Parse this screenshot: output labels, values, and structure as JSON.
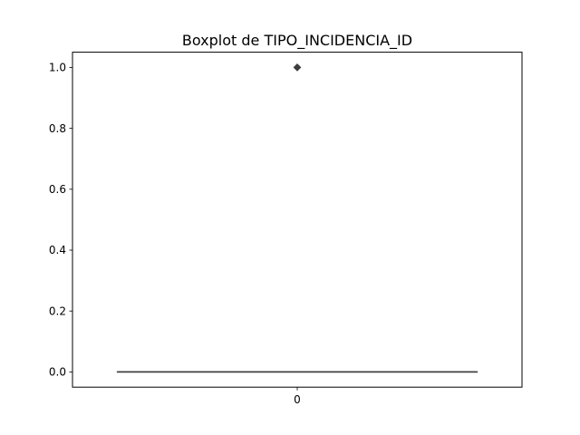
{
  "chart_data": {
    "type": "boxplot",
    "title": "Boxplot de TIPO_INCIDENCIA_ID",
    "xlabel": "",
    "ylabel": "",
    "categories": [
      "0"
    ],
    "ylim": [
      -0.05,
      1.05
    ],
    "yticks": [
      0.0,
      0.2,
      0.4,
      0.6,
      0.8,
      1.0
    ],
    "ytick_labels": [
      "0.0",
      "0.2",
      "0.4",
      "0.6",
      "0.8",
      "1.0"
    ],
    "boxes": [
      {
        "category": "0",
        "min": 0.0,
        "q1": 0.0,
        "median": 0.0,
        "q3": 0.0,
        "max": 0.0,
        "outliers": [
          1.0
        ]
      }
    ],
    "grid": false,
    "legend": "none",
    "colors": {
      "line": "#3d3d3d",
      "axis": "#000000"
    }
  }
}
